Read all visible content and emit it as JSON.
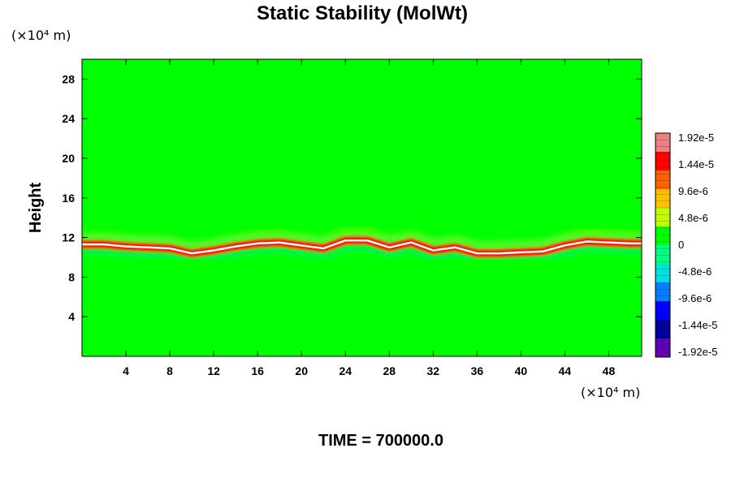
{
  "chart_data": {
    "type": "heatmap",
    "title": "Static Stability (MolWt)",
    "ylabel": "Height",
    "x_unit_label": "(×10⁴ m)",
    "y_unit_label": "(×10⁴ m)",
    "time_label": "TIME = 700000.0",
    "xlim": [
      0,
      51
    ],
    "ylim": [
      0,
      30
    ],
    "x_ticks": [
      4,
      8,
      12,
      16,
      20,
      24,
      28,
      32,
      36,
      40,
      44,
      48
    ],
    "y_ticks": [
      4,
      8,
      12,
      16,
      20,
      24,
      28
    ],
    "colorbar": {
      "labels": [
        "1.92e-5",
        "1.44e-5",
        "9.6e-6",
        "4.8e-6",
        "0",
        "-4.8e-6",
        "-9.6e-6",
        "-1.44e-5",
        "-1.92e-5"
      ],
      "values": [
        1.92e-05,
        1.44e-05,
        9.6e-06,
        4.8e-06,
        0,
        -4.8e-06,
        -9.6e-06,
        -1.44e-05,
        -1.92e-05
      ],
      "colors_top_to_bottom": [
        "#f08080",
        "#ff0000",
        "#ff6000",
        "#ffc000",
        "#c0ff00",
        "#00ff00",
        "#00ff80",
        "#00e0e0",
        "#0080ff",
        "#0000ff",
        "#0000a0",
        "#6000b0"
      ]
    },
    "background_color": "#00ff00",
    "stable_layer_height": [
      [
        0,
        11.3
      ],
      [
        2,
        11.3
      ],
      [
        4,
        11.1
      ],
      [
        6,
        11.0
      ],
      [
        8,
        10.9
      ],
      [
        10,
        10.4
      ],
      [
        12,
        10.7
      ],
      [
        14,
        11.1
      ],
      [
        16,
        11.4
      ],
      [
        18,
        11.5
      ],
      [
        20,
        11.2
      ],
      [
        22,
        10.9
      ],
      [
        24,
        11.7
      ],
      [
        26,
        11.7
      ],
      [
        28,
        11.0
      ],
      [
        30,
        11.5
      ],
      [
        32,
        10.7
      ],
      [
        34,
        11.0
      ],
      [
        36,
        10.4
      ],
      [
        38,
        10.4
      ],
      [
        40,
        10.5
      ],
      [
        42,
        10.6
      ],
      [
        44,
        11.2
      ],
      [
        46,
        11.6
      ],
      [
        48,
        11.5
      ],
      [
        50,
        11.4
      ],
      [
        51,
        11.4
      ]
    ]
  }
}
